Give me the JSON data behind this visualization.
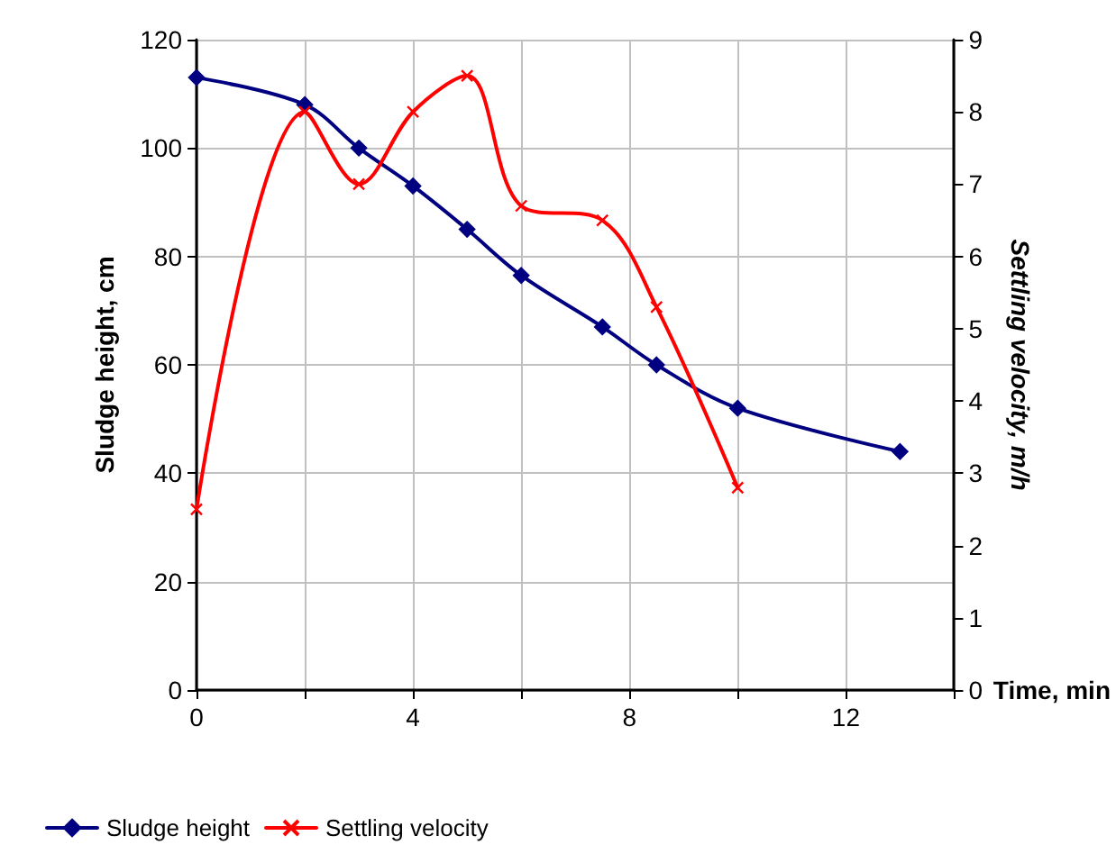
{
  "chart_data": {
    "type": "line",
    "xlabel": "Time, min",
    "ylabel": "Sludge height, cm",
    "y2label": "Settling velocity, m/h",
    "xlim": [
      0,
      14
    ],
    "xticks": [
      0,
      {
        "value": 2,
        "label": null
      },
      4,
      {
        "value": 6,
        "label": null
      },
      8,
      {
        "value": 10,
        "label": null
      },
      12,
      {
        "value": 14,
        "label": null
      }
    ],
    "ylim": [
      0,
      120
    ],
    "yticks": [
      0,
      20,
      40,
      60,
      80,
      100,
      120
    ],
    "y2lim": [
      0,
      9
    ],
    "y2ticks": [
      0,
      1,
      2,
      3,
      4,
      5,
      6,
      7,
      8,
      9
    ],
    "grid": true,
    "legend": "bottom left",
    "line_style": "solid",
    "series": [
      {
        "name": "Sludge height",
        "color": "#000080",
        "marker": "diamond",
        "x": [
          0,
          2,
          3,
          4,
          5,
          6,
          7.5,
          8.5,
          10,
          13
        ],
        "values": [
          113,
          108,
          100,
          93,
          85,
          76.5,
          67,
          60,
          52,
          44
        ]
      },
      {
        "name": "Settling velocity",
        "color": "#ff0000",
        "marker": "cross",
        "axis": "y2",
        "x": [
          0,
          2,
          3,
          4,
          5,
          6,
          7.5,
          8.5,
          10
        ],
        "values": [
          2.5,
          8.0,
          7.0,
          8.0,
          8.5,
          6.7,
          6.5,
          5.3,
          2.8
        ]
      }
    ]
  }
}
